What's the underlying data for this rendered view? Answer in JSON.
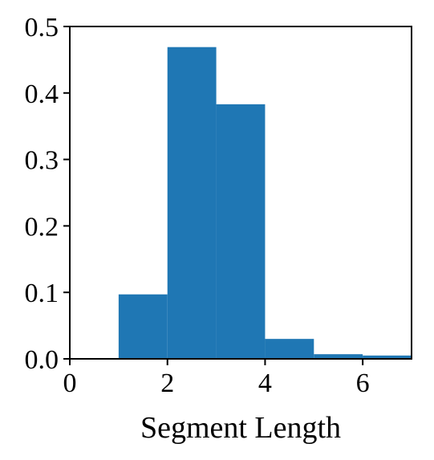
{
  "chart_data": {
    "type": "bar",
    "title": "",
    "xlabel": "Segment Length",
    "ylabel": "",
    "bins": [
      {
        "x0": 1,
        "x1": 2,
        "value": 0.097
      },
      {
        "x0": 2,
        "x1": 3,
        "value": 0.469
      },
      {
        "x0": 3,
        "x1": 4,
        "value": 0.383
      },
      {
        "x0": 4,
        "x1": 5,
        "value": 0.03
      },
      {
        "x0": 5,
        "x1": 6,
        "value": 0.007
      },
      {
        "x0": 6,
        "x1": 7,
        "value": 0.005
      }
    ],
    "xlim": [
      0,
      7
    ],
    "ylim": [
      0,
      0.5
    ],
    "xticks": [
      0,
      2,
      4,
      6
    ],
    "xtick_labels": [
      "0",
      "2",
      "4",
      "6"
    ],
    "yticks": [
      0,
      0.1,
      0.2,
      0.3,
      0.4,
      0.5
    ],
    "ytick_labels": [
      "0.0",
      "0.1",
      "0.2",
      "0.3",
      "0.4",
      "0.5"
    ],
    "grid": false,
    "legend": "none",
    "bar_color": "#1f77b4"
  }
}
